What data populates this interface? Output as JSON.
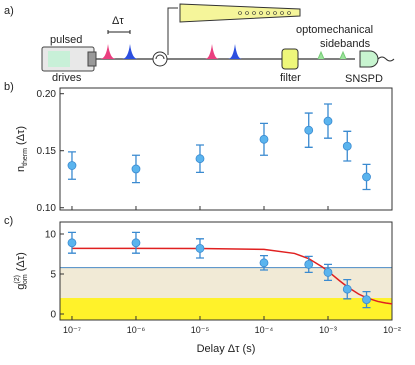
{
  "panel_label": "a)",
  "diagram": {
    "source_top": "pulsed",
    "source_bottom": "drives",
    "delay": "Δτ",
    "sidebands_top": "optomechanical",
    "sidebands_bottom": "sidebands",
    "filter": "filter",
    "detector": "SNSPD"
  },
  "chart_data": [
    {
      "type": "scatter",
      "panel_label": "b)",
      "xscale": "log",
      "ylabel": {
        "main": "n",
        "sub": "therm",
        "rest": " (Δτ)"
      },
      "x": [
        1e-07,
        1e-06,
        1e-05,
        0.0001,
        0.0005,
        0.001,
        0.002,
        0.004
      ],
      "series": [
        {
          "color": "#5ab4ee",
          "values": [
            0.137,
            0.134,
            0.143,
            0.16,
            0.168,
            0.176,
            0.154,
            0.127
          ],
          "errors": [
            0.012,
            0.012,
            0.012,
            0.014,
            0.015,
            0.015,
            0.013,
            0.011
          ]
        }
      ],
      "xlim": [
        6.5e-08,
        0.01
      ],
      "xticks": [
        1e-07,
        1e-06,
        1e-05,
        0.0001,
        0.001,
        0.01
      ],
      "ylim": [
        0.098,
        0.205
      ],
      "yticks": [
        {
          "value": 0.1,
          "label": "0.10"
        },
        0.15,
        {
          "value": 0.2,
          "label": "0.20"
        }
      ]
    },
    {
      "type": "scatter",
      "panel_label": "c)",
      "xscale": "log",
      "ylabel": {
        "main": "g",
        "sub": "om",
        "sup": "(2)",
        "rest": " (Δτ)"
      },
      "xlabel": "Delay Δτ (s)",
      "x": [
        1e-07,
        1e-06,
        1e-05,
        0.0001,
        0.0005,
        0.001,
        0.002,
        0.004
      ],
      "series": [
        {
          "color": "#5ab4ee",
          "values": [
            8.9,
            8.9,
            8.2,
            6.4,
            6.2,
            5.2,
            3.1,
            1.8
          ],
          "errors": [
            1.3,
            1.3,
            1.2,
            0.9,
            1.0,
            1.0,
            1.2,
            1.0
          ]
        }
      ],
      "fit": {
        "color": "#e02020",
        "x": [
          1e-07,
          1e-06,
          1e-05,
          0.0001,
          0.0003,
          0.0005,
          0.0008,
          0.001,
          0.0015,
          0.002,
          0.003,
          0.004,
          0.006,
          0.008,
          0.01
        ],
        "values": [
          8.2,
          8.2,
          8.19,
          8.08,
          7.57,
          6.92,
          5.93,
          5.35,
          4.19,
          3.41,
          2.5,
          2.02,
          1.57,
          1.37,
          1.27
        ]
      },
      "bands": [
        {
          "from": 2,
          "to": 5.8,
          "color": "#f1ead6"
        },
        {
          "from": -0.75,
          "to": 2,
          "color": "#fff22a"
        }
      ],
      "hline": {
        "value": 5.8,
        "color": "#4a8ac4"
      },
      "xlim": [
        6.5e-08,
        0.01
      ],
      "xticks": [
        {
          "value": 1e-07,
          "label": "10⁻⁷"
        },
        {
          "value": 1e-06,
          "label": "10⁻⁶"
        },
        {
          "value": 1e-05,
          "label": "10⁻⁵"
        },
        {
          "value": 0.0001,
          "label": "10⁻⁴"
        },
        {
          "value": 0.001,
          "label": "10⁻³"
        },
        {
          "value": 0.01,
          "label": "10⁻²"
        }
      ],
      "ylim": [
        -0.75,
        11.5
      ],
      "yticks": [
        0,
        5,
        10
      ]
    }
  ]
}
